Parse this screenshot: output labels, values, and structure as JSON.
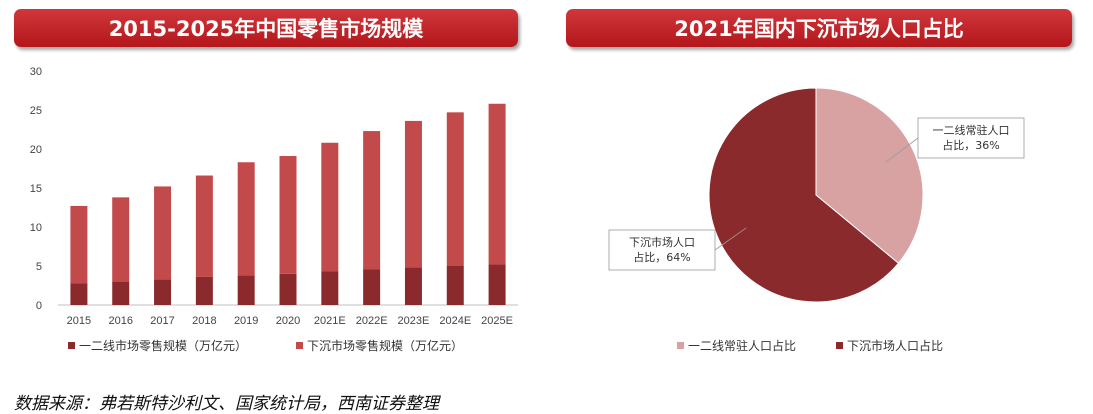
{
  "left_title": "2015-2025年中国零售市场规模",
  "right_title": "2021年国内下沉市场人口占比",
  "source": "数据来源：弗若斯特沙利文、国家统计局，西南证券整理",
  "colors": {
    "banner": "#c0252b",
    "dark": "#8b2a2c",
    "medium": "#c24a4b",
    "light": "#d8a2a3"
  },
  "chart_data": [
    {
      "type": "bar",
      "stacked": true,
      "categories": [
        "2015",
        "2016",
        "2017",
        "2018",
        "2019",
        "2020",
        "2021E",
        "2022E",
        "2023E",
        "2024E",
        "2025E"
      ],
      "series": [
        {
          "name": "一二线市场零售规模（万亿元）",
          "color": "#8b2a2c",
          "values": [
            2.8,
            3.0,
            3.3,
            3.6,
            3.8,
            4.0,
            4.3,
            4.6,
            4.8,
            5.0,
            5.2
          ]
        },
        {
          "name": "下沉市场零售规模（万亿元）",
          "color": "#c24a4b",
          "values": [
            9.9,
            10.8,
            11.9,
            13.0,
            14.5,
            15.1,
            16.5,
            17.7,
            18.8,
            19.7,
            20.6
          ]
        }
      ],
      "ylim": [
        0,
        30
      ],
      "yticks": [
        0,
        5,
        10,
        15,
        20,
        25,
        30
      ],
      "grid": false,
      "legend": "bottom"
    },
    {
      "type": "pie",
      "slices": [
        {
          "name": "一二线常驻人口占比",
          "value": 36,
          "color": "#d8a2a3",
          "callout": "一二线常驻人口占比，36%"
        },
        {
          "name": "下沉市场人口占比",
          "value": 64,
          "color": "#8b2a2c",
          "callout": "下沉市场人口占比，64%"
        }
      ],
      "legend": "bottom"
    }
  ]
}
